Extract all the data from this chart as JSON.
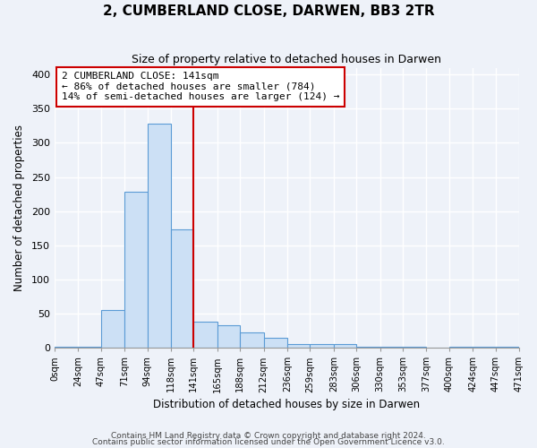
{
  "title": "2, CUMBERLAND CLOSE, DARWEN, BB3 2TR",
  "subtitle": "Size of property relative to detached houses in Darwen",
  "xlabel": "Distribution of detached houses by size in Darwen",
  "ylabel": "Number of detached properties",
  "bin_edges": [
    0,
    24,
    47,
    71,
    94,
    118,
    141,
    165,
    188,
    212,
    236,
    259,
    283,
    306,
    330,
    353,
    377,
    400,
    424,
    447,
    471
  ],
  "bin_labels": [
    "0sqm",
    "24sqm",
    "47sqm",
    "71sqm",
    "94sqm",
    "118sqm",
    "141sqm",
    "165sqm",
    "188sqm",
    "212sqm",
    "236sqm",
    "259sqm",
    "283sqm",
    "306sqm",
    "330sqm",
    "353sqm",
    "377sqm",
    "400sqm",
    "424sqm",
    "447sqm",
    "471sqm"
  ],
  "counts": [
    2,
    2,
    55,
    228,
    328,
    173,
    38,
    33,
    22,
    14,
    5,
    5,
    5,
    2,
    2,
    2,
    0,
    2,
    2,
    2
  ],
  "bar_color": "#cce0f5",
  "bar_edge_color": "#5b9bd5",
  "vline_x": 141,
  "vline_color": "#cc0000",
  "annotation_line1": "2 CUMBERLAND CLOSE: 141sqm",
  "annotation_line2": "← 86% of detached houses are smaller (784)",
  "annotation_line3": "14% of semi-detached houses are larger (124) →",
  "annotation_box_color": "#ffffff",
  "annotation_box_edge_color": "#cc0000",
  "ylim": [
    0,
    410
  ],
  "yticks": [
    0,
    50,
    100,
    150,
    200,
    250,
    300,
    350,
    400
  ],
  "bg_color": "#eef2f9",
  "grid_color": "#ffffff",
  "footnote1": "Contains HM Land Registry data © Crown copyright and database right 2024.",
  "footnote2": "Contains public sector information licensed under the Open Government Licence v3.0."
}
